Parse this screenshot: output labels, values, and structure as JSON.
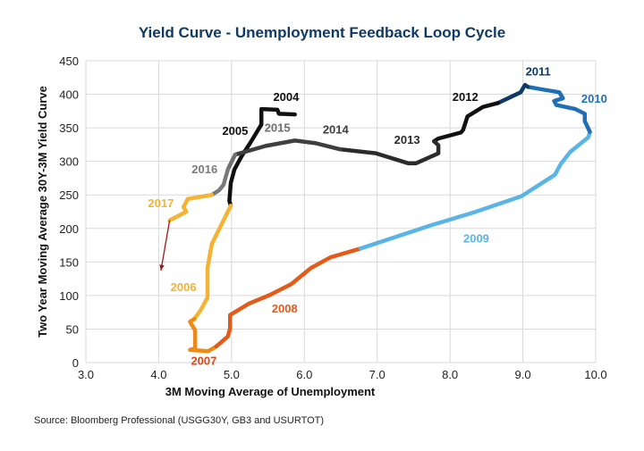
{
  "chart_data": {
    "type": "line",
    "title": "Yield Curve - Unemployment Feedback Loop Cycle",
    "xlabel": "3M Moving Average of Unemployment",
    "ylabel": "Two Year Moving Average 30Y-3M Yield Curve",
    "source": "Source: Bloomberg Professional (USGG30Y, GB3 and USURTOT)",
    "xlim": [
      3.0,
      10.0
    ],
    "ylim": [
      0,
      450
    ],
    "xticks": [
      "3.0",
      "4.0",
      "5.0",
      "6.0",
      "7.0",
      "8.0",
      "9.0",
      "10.0"
    ],
    "yticks": [
      "0",
      "50",
      "100",
      "150",
      "200",
      "250",
      "300",
      "350",
      "400",
      "450"
    ],
    "grid": true,
    "colors": {
      "title": "#0d3a66",
      "grid": "#d9d9d9",
      "arrow": "#a01818"
    },
    "series": [
      {
        "name": "2004",
        "color": "#111111",
        "points": [
          [
            5.87,
            370
          ],
          [
            5.65,
            371
          ],
          [
            5.63,
            377
          ],
          [
            5.41,
            378
          ],
          [
            5.41,
            355
          ]
        ],
        "label_at": [
          5.75,
          397
        ]
      },
      {
        "name": "2005",
        "color": "#111111",
        "points": [
          [
            5.41,
            355
          ],
          [
            5.26,
            328
          ],
          [
            5.14,
            308
          ],
          [
            5.04,
            288
          ],
          [
            4.99,
            268
          ],
          [
            4.97,
            241
          ],
          [
            4.99,
            234
          ]
        ],
        "label_at": [
          5.05,
          346
        ]
      },
      {
        "name": "2006",
        "color": "#f5b335",
        "points": [
          [
            4.99,
            234
          ],
          [
            4.73,
            177
          ],
          [
            4.67,
            141
          ],
          [
            4.67,
            97
          ],
          [
            4.58,
            79
          ],
          [
            4.49,
            65
          ]
        ],
        "label_at": [
          4.34,
          113
        ]
      },
      {
        "name": "2007",
        "color": "#ef8a17",
        "points": [
          [
            4.49,
            65
          ],
          [
            4.43,
            61
          ],
          [
            4.5,
            48
          ],
          [
            4.5,
            21
          ],
          [
            4.43,
            19
          ],
          [
            4.68,
            17
          ],
          [
            4.79,
            24
          ]
        ],
        "label_at": [
          4.62,
          3
        ],
        "label_color": "#e0481a"
      },
      {
        "name": "2008",
        "color": "#e35b1b",
        "points": [
          [
            4.79,
            24
          ],
          [
            4.95,
            39
          ],
          [
            4.98,
            51
          ],
          [
            4.98,
            71
          ],
          [
            5.24,
            88
          ],
          [
            5.53,
            101
          ],
          [
            5.82,
            117
          ],
          [
            6.09,
            141
          ],
          [
            6.36,
            157
          ],
          [
            6.77,
            170
          ]
        ],
        "label_at": [
          5.73,
          81
        ]
      },
      {
        "name": "2009",
        "color": "#5ab4e6",
        "points": [
          [
            6.77,
            170
          ],
          [
            7.72,
            204
          ],
          [
            8.33,
            224
          ],
          [
            8.98,
            248
          ],
          [
            9.44,
            280
          ],
          [
            9.52,
            296
          ],
          [
            9.65,
            314
          ],
          [
            9.9,
            336
          ],
          [
            9.92,
            344
          ]
        ],
        "label_at": [
          8.36,
          186
        ]
      },
      {
        "name": "2010",
        "color": "#1f6fb2",
        "points": [
          [
            9.92,
            344
          ],
          [
            9.85,
            360
          ],
          [
            9.85,
            371
          ],
          [
            9.72,
            378
          ],
          [
            9.46,
            384
          ],
          [
            9.43,
            390
          ],
          [
            9.55,
            394
          ],
          [
            9.5,
            403
          ],
          [
            9.28,
            407
          ],
          [
            9.07,
            411
          ]
        ],
        "label_at": [
          9.98,
          394
        ]
      },
      {
        "name": "2011",
        "color": "#0d3a66",
        "points": [
          [
            9.07,
            411
          ],
          [
            9.03,
            414
          ],
          [
            8.97,
            403
          ],
          [
            8.66,
            387
          ]
        ],
        "label_at": [
          9.21,
          435
        ]
      },
      {
        "name": "2012",
        "color": "#111111",
        "points": [
          [
            8.66,
            387
          ],
          [
            8.45,
            381
          ],
          [
            8.24,
            367
          ],
          [
            8.18,
            347
          ],
          [
            8.15,
            343
          ],
          [
            7.84,
            334
          ],
          [
            7.78,
            330
          ]
        ],
        "label_at": [
          8.21,
          397
        ]
      },
      {
        "name": "2013",
        "color": "#2b2b2b",
        "points": [
          [
            7.78,
            330
          ],
          [
            7.84,
            324
          ],
          [
            7.84,
            312
          ],
          [
            7.53,
            297
          ],
          [
            7.43,
            297
          ],
          [
            6.98,
            312
          ],
          [
            6.49,
            318
          ]
        ],
        "label_at": [
          7.41,
          333
        ]
      },
      {
        "name": "2014",
        "color": "#3f3f3f",
        "points": [
          [
            6.49,
            318
          ],
          [
            6.16,
            327
          ],
          [
            5.87,
            331
          ],
          [
            5.47,
            323
          ],
          [
            5.05,
            310
          ]
        ],
        "label_at": [
          6.43,
          348
        ]
      },
      {
        "name": "2015",
        "color": "#6f6f6f",
        "points": [
          [
            5.05,
            310
          ],
          [
            4.95,
            288
          ]
        ],
        "label_at": [
          5.63,
          351
        ]
      },
      {
        "name": "2016",
        "color": "#7a7a7a",
        "points": [
          [
            4.95,
            288
          ],
          [
            4.89,
            265
          ],
          [
            4.83,
            257
          ],
          [
            4.73,
            250
          ]
        ],
        "label_at": [
          4.63,
          289
        ]
      },
      {
        "name": "2017",
        "color": "#f5b335",
        "points": [
          [
            4.73,
            250
          ],
          [
            4.4,
            244
          ],
          [
            4.34,
            232
          ],
          [
            4.38,
            225
          ],
          [
            4.15,
            212
          ]
        ],
        "label_at": [
          4.03,
          238
        ]
      }
    ],
    "arrow": {
      "from": [
        4.15,
        212
      ],
      "to": [
        4.03,
        137
      ]
    }
  }
}
